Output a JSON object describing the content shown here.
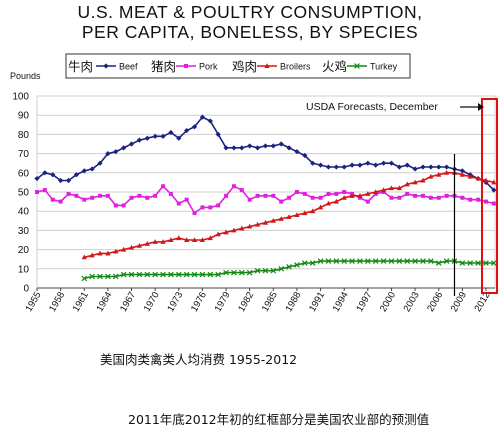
{
  "chart_data": {
    "type": "line",
    "title": [
      "U.S. MEAT & POULTRY CONSUMPTION,",
      "PER CAPITA, BONELESS, BY SPECIES"
    ],
    "ylabel": "Pounds",
    "ylim": [
      0,
      100
    ],
    "xlim": [
      1955,
      2013
    ],
    "y_ticks": [
      0,
      10,
      20,
      30,
      40,
      50,
      60,
      70,
      80,
      90,
      100
    ],
    "x_ticks": [
      1955,
      1958,
      1961,
      1964,
      1967,
      1970,
      1973,
      1976,
      1979,
      1982,
      1985,
      1988,
      1991,
      1994,
      1997,
      2000,
      2003,
      2006,
      2009,
      2012
    ],
    "grid": "horizontal",
    "legend_position": "top",
    "annotation": "USDA Forecasts, December",
    "forecast_region": [
      2011.5,
      2013
    ],
    "colors": {
      "beef": "#1a237e",
      "pork": "#e020e0",
      "broilers": "#d01818",
      "turkey": "#118a11",
      "forecast_box": "#e01010",
      "vline": "#000000"
    },
    "series": [
      {
        "name": "Beef",
        "label_cn": "牛肉",
        "key": "beef",
        "x": [
          1955,
          1956,
          1957,
          1958,
          1959,
          1960,
          1961,
          1962,
          1963,
          1964,
          1965,
          1966,
          1967,
          1968,
          1969,
          1970,
          1971,
          1972,
          1973,
          1974,
          1975,
          1976,
          1977,
          1978,
          1979,
          1980,
          1981,
          1982,
          1983,
          1984,
          1985,
          1986,
          1987,
          1988,
          1989,
          1990,
          1991,
          1992,
          1993,
          1994,
          1995,
          1996,
          1997,
          1998,
          1999,
          2000,
          2001,
          2002,
          2003,
          2004,
          2005,
          2006,
          2007,
          2008,
          2009,
          2010,
          2011,
          2012,
          2013
        ],
        "y": [
          57,
          60,
          59,
          56,
          56,
          59,
          61,
          62,
          65,
          70,
          71,
          73,
          75,
          77,
          78,
          79,
          79,
          81,
          78,
          82,
          84,
          89,
          87,
          80,
          73,
          73,
          73,
          74,
          73,
          74,
          74,
          75,
          73,
          71,
          69,
          65,
          64,
          63,
          63,
          63,
          64,
          64,
          65,
          64,
          65,
          65,
          63,
          64,
          62,
          63,
          63,
          63,
          63,
          62,
          61,
          59,
          57,
          55,
          51
        ]
      },
      {
        "name": "Pork",
        "label_cn": "猪肉",
        "key": "pork",
        "x": [
          1955,
          1956,
          1957,
          1958,
          1959,
          1960,
          1961,
          1962,
          1963,
          1964,
          1965,
          1966,
          1967,
          1968,
          1969,
          1970,
          1971,
          1972,
          1973,
          1974,
          1975,
          1976,
          1977,
          1978,
          1979,
          1980,
          1981,
          1982,
          1983,
          1984,
          1985,
          1986,
          1987,
          1988,
          1989,
          1990,
          1991,
          1992,
          1993,
          1994,
          1995,
          1996,
          1997,
          1998,
          1999,
          2000,
          2001,
          2002,
          2003,
          2004,
          2005,
          2006,
          2007,
          2008,
          2009,
          2010,
          2011,
          2012,
          2013
        ],
        "y": [
          50,
          51,
          46,
          45,
          49,
          48,
          46,
          47,
          48,
          48,
          43,
          43,
          47,
          48,
          47,
          48,
          53,
          49,
          44,
          46,
          39,
          42,
          42,
          43,
          48,
          53,
          51,
          46,
          48,
          48,
          48,
          45,
          47,
          50,
          49,
          47,
          47,
          49,
          49,
          50,
          49,
          47,
          45,
          49,
          50,
          47,
          47,
          49,
          48,
          48,
          47,
          47,
          48,
          48,
          47,
          46,
          46,
          45,
          44
        ]
      },
      {
        "name": "Broilers",
        "label_cn": "鸡肉",
        "key": "broilers",
        "x": [
          1961,
          1962,
          1963,
          1964,
          1965,
          1966,
          1967,
          1968,
          1969,
          1970,
          1971,
          1972,
          1973,
          1974,
          1975,
          1976,
          1977,
          1978,
          1979,
          1980,
          1981,
          1982,
          1983,
          1984,
          1985,
          1986,
          1987,
          1988,
          1989,
          1990,
          1991,
          1992,
          1993,
          1994,
          1995,
          1996,
          1997,
          1998,
          1999,
          2000,
          2001,
          2002,
          2003,
          2004,
          2005,
          2006,
          2007,
          2008,
          2009,
          2010,
          2011,
          2012,
          2013
        ],
        "y": [
          16,
          17,
          18,
          18,
          19,
          20,
          21,
          22,
          23,
          24,
          24,
          25,
          26,
          25,
          25,
          25,
          26,
          28,
          29,
          30,
          31,
          32,
          33,
          34,
          35,
          36,
          37,
          38,
          39,
          40,
          42,
          44,
          45,
          47,
          48,
          48,
          49,
          50,
          51,
          52,
          52,
          54,
          55,
          56,
          58,
          59,
          60,
          60,
          59,
          58,
          57,
          56,
          55
        ]
      },
      {
        "name": "Turkey",
        "label_cn": "火鸡",
        "key": "turkey",
        "x": [
          1961,
          1962,
          1963,
          1964,
          1965,
          1966,
          1967,
          1968,
          1969,
          1970,
          1971,
          1972,
          1973,
          1974,
          1975,
          1976,
          1977,
          1978,
          1979,
          1980,
          1981,
          1982,
          1983,
          1984,
          1985,
          1986,
          1987,
          1988,
          1989,
          1990,
          1991,
          1992,
          1993,
          1994,
          1995,
          1996,
          1997,
          1998,
          1999,
          2000,
          2001,
          2002,
          2003,
          2004,
          2005,
          2006,
          2007,
          2008,
          2009,
          2010,
          2011,
          2012,
          2013
        ],
        "y": [
          5,
          6,
          6,
          6,
          6,
          7,
          7,
          7,
          7,
          7,
          7,
          7,
          7,
          7,
          7,
          7,
          7,
          7,
          8,
          8,
          8,
          8,
          9,
          9,
          9,
          10,
          11,
          12,
          13,
          13,
          14,
          14,
          14,
          14,
          14,
          14,
          14,
          14,
          14,
          14,
          14,
          14,
          14,
          14,
          14,
          13,
          14,
          14,
          13,
          13,
          13,
          13,
          13
        ]
      }
    ]
  },
  "captions": {
    "main": "美国肉类禽类人均消费 1955-2012",
    "note": "2011年底2012年初的红框部分是美国农业部的预测值"
  }
}
